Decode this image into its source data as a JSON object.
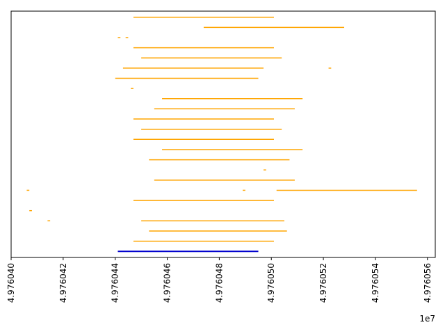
{
  "chart_data": {
    "type": "line",
    "title": "",
    "xlabel": "",
    "ylabel": "",
    "grid": false,
    "legend": "none",
    "offset_text": "1e7",
    "xlim": [
      4.97604,
      4.9760563
    ],
    "x_ticks": [
      4.97604,
      4.976042,
      4.976044,
      4.976046,
      4.976048,
      4.97605,
      4.976052,
      4.976054,
      4.976056
    ],
    "x_tick_labels": [
      "4.976040",
      "4.976042",
      "4.976044",
      "4.976046",
      "4.976048",
      "4.976050",
      "4.976052",
      "4.976054",
      "4.976056"
    ],
    "ylim": [
      -0.6,
      23.6
    ],
    "y_ticks_visible": false,
    "colors": {
      "segment": "#ffa500",
      "reference": "#0000cd"
    },
    "series": [
      {
        "role": "segments",
        "color": "#ffa500",
        "segments": [
          {
            "y": 23,
            "x": [
              4.9760447,
              4.9760501
            ]
          },
          {
            "y": 22,
            "x": [
              4.9760474,
              4.9760528
            ]
          },
          {
            "y": 21,
            "x": [
              4.9760441,
              4.9760442
            ]
          },
          {
            "y": 21,
            "x": [
              4.9760444,
              4.9760445
            ]
          },
          {
            "y": 20,
            "x": [
              4.9760447,
              4.9760501
            ]
          },
          {
            "y": 19,
            "x": [
              4.976045,
              4.9760504
            ]
          },
          {
            "y": 18,
            "x": [
              4.9760443,
              4.9760497
            ]
          },
          {
            "y": 18,
            "x": [
              4.9760522,
              4.9760523
            ]
          },
          {
            "y": 17,
            "x": [
              4.976044,
              4.9760495
            ]
          },
          {
            "y": 16,
            "x": [
              4.9760446,
              4.9760447
            ]
          },
          {
            "y": 15,
            "x": [
              4.9760458,
              4.9760512
            ]
          },
          {
            "y": 14,
            "x": [
              4.9760455,
              4.9760509
            ]
          },
          {
            "y": 13,
            "x": [
              4.9760447,
              4.9760501
            ]
          },
          {
            "y": 12,
            "x": [
              4.976045,
              4.9760504
            ]
          },
          {
            "y": 11,
            "x": [
              4.9760447,
              4.9760501
            ]
          },
          {
            "y": 10,
            "x": [
              4.9760458,
              4.9760512
            ]
          },
          {
            "y": 9,
            "x": [
              4.9760453,
              4.9760507
            ]
          },
          {
            "y": 8,
            "x": [
              4.9760497,
              4.9760498
            ]
          },
          {
            "y": 7,
            "x": [
              4.9760455,
              4.9760509
            ]
          },
          {
            "y": 6,
            "x": [
              4.9760406,
              4.9760407
            ]
          },
          {
            "y": 6,
            "x": [
              4.9760489,
              4.976049
            ]
          },
          {
            "y": 6,
            "x": [
              4.9760502,
              4.9760556
            ]
          },
          {
            "y": 5,
            "x": [
              4.9760447,
              4.9760501
            ]
          },
          {
            "y": 4,
            "x": [
              4.9760407,
              4.9760408
            ]
          },
          {
            "y": 3,
            "x": [
              4.9760414,
              4.9760415
            ]
          },
          {
            "y": 3,
            "x": [
              4.976045,
              4.9760505
            ]
          },
          {
            "y": 2,
            "x": [
              4.9760453,
              4.9760506
            ]
          },
          {
            "y": 1,
            "x": [
              4.9760447,
              4.9760501
            ]
          }
        ]
      },
      {
        "role": "reference",
        "color": "#0000cd",
        "segments": [
          {
            "y": 0,
            "x": [
              4.9760441,
              4.9760495
            ]
          }
        ]
      }
    ]
  }
}
